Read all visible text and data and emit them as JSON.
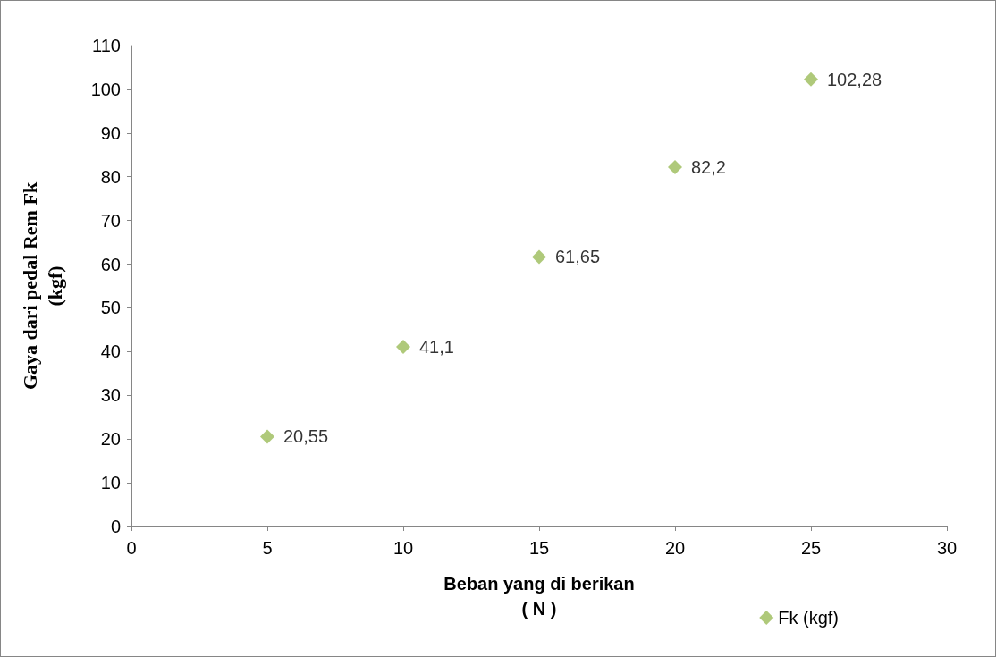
{
  "chart_data": {
    "type": "scatter",
    "xlabel": "Beban yang di berikan\n( N )",
    "ylabel": "Gaya dari pedal Rem Fk\n(kgf)",
    "x": [
      5,
      10,
      15,
      20,
      25
    ],
    "series": [
      {
        "name": "Fk (kgf)",
        "color": "#9bbb59",
        "values": [
          20.55,
          41.1,
          61.65,
          82.2,
          102.28
        ],
        "value_labels": [
          "20,55",
          "41,1",
          "61,65",
          "82,2",
          "102,28"
        ]
      }
    ],
    "xlim": [
      0,
      30
    ],
    "xticks": [
      0,
      5,
      10,
      15,
      20,
      25,
      30
    ],
    "ylim": [
      0,
      110
    ],
    "yticks": [
      0,
      10,
      20,
      30,
      40,
      50,
      60,
      70,
      80,
      90,
      100,
      110
    ],
    "grid": false,
    "legend": "bottom right",
    "marker": "diamond"
  }
}
